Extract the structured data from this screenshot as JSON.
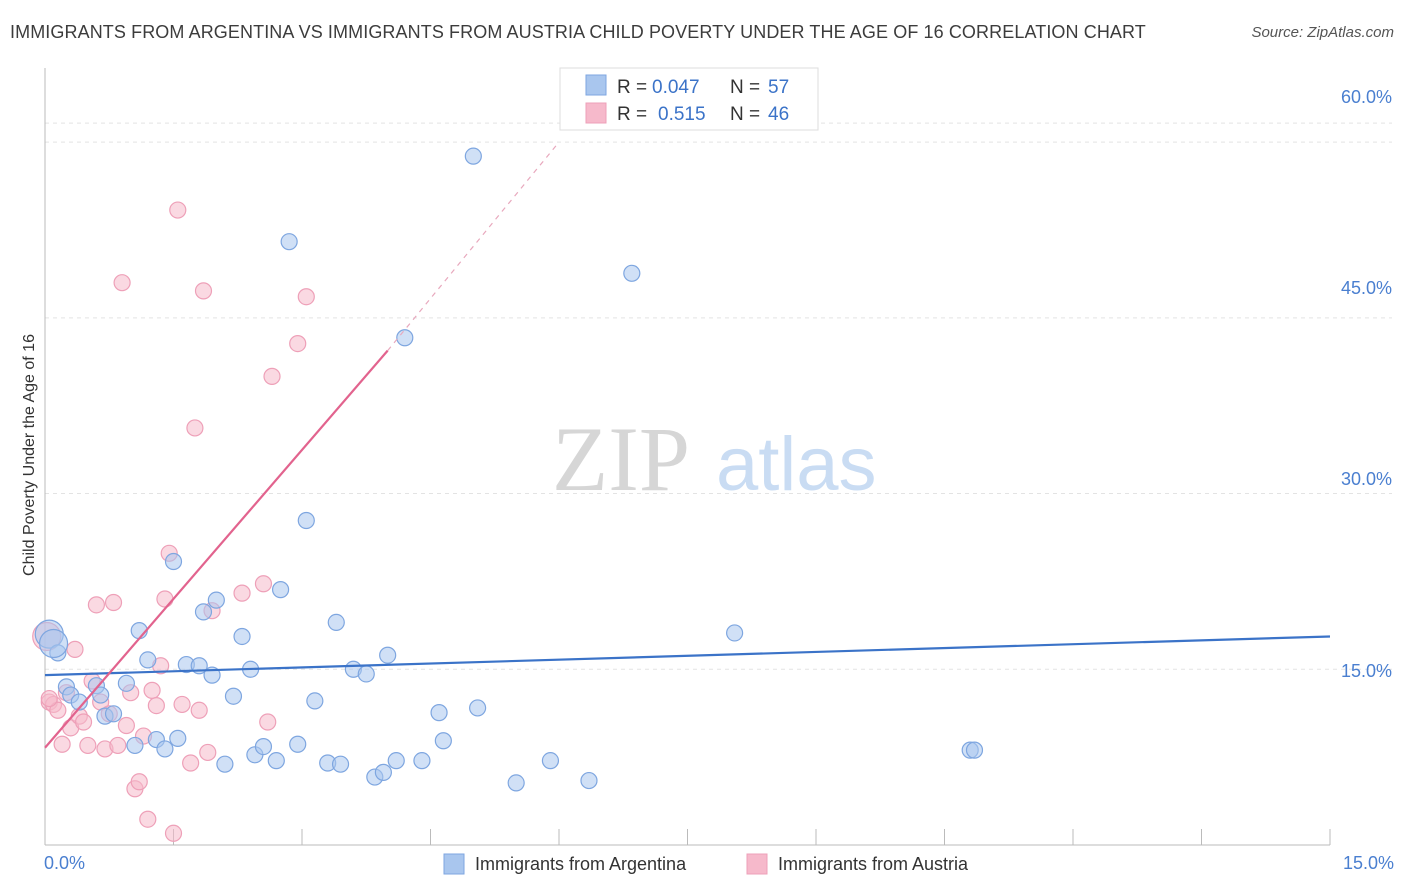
{
  "title": "IMMIGRANTS FROM ARGENTINA VS IMMIGRANTS FROM AUSTRIA CHILD POVERTY UNDER THE AGE OF 16 CORRELATION CHART",
  "source": "Source: ZipAtlas.com",
  "watermark": {
    "zip": "ZIP",
    "atlas": "atlas"
  },
  "colors": {
    "argentina": "#3b73c8",
    "austria": "#e2638e",
    "argentina_fill": "#a9c6ee",
    "austria_fill": "#f6b9cb"
  },
  "legend": {
    "r_label": "R =",
    "n_label": "N =",
    "argentina": {
      "r": "0.047",
      "n": "57"
    },
    "austria": {
      "r": "0.515",
      "n": "46"
    }
  },
  "chart_data": {
    "type": "scatter",
    "xlabel": "",
    "ylabel": "Child Poverty Under the Age of 16",
    "xlim": [
      0,
      15
    ],
    "ylim": [
      0,
      60
    ],
    "x_tick_labels": [
      "0.0%",
      "15.0%"
    ],
    "y_ticks": [
      15,
      30,
      45,
      60
    ],
    "y_tick_labels": [
      "15.0%",
      "30.0%",
      "45.0%",
      "60.0%"
    ],
    "grid": true,
    "legend_position": "top-center",
    "series": [
      {
        "name": "Immigrants from Argentina",
        "points": [
          [
            0.05,
            18
          ],
          [
            0.15,
            16.4
          ],
          [
            0.25,
            13.5
          ],
          [
            0.3,
            12.8
          ],
          [
            0.4,
            12.2
          ],
          [
            0.6,
            13.6
          ],
          [
            0.65,
            12.8
          ],
          [
            0.7,
            11
          ],
          [
            0.8,
            11.2
          ],
          [
            0.95,
            13.8
          ],
          [
            1.05,
            8.5
          ],
          [
            1.1,
            18.3
          ],
          [
            1.2,
            15.8
          ],
          [
            1.3,
            9
          ],
          [
            1.4,
            8.2
          ],
          [
            1.5,
            24.2
          ],
          [
            1.55,
            9.1
          ],
          [
            1.65,
            15.4
          ],
          [
            1.8,
            15.3
          ],
          [
            1.85,
            19.9
          ],
          [
            1.95,
            14.5
          ],
          [
            2.0,
            20.9
          ],
          [
            2.1,
            6.9
          ],
          [
            2.2,
            12.7
          ],
          [
            2.3,
            17.8
          ],
          [
            2.4,
            15
          ],
          [
            2.45,
            7.7
          ],
          [
            2.55,
            8.4
          ],
          [
            2.7,
            7.2
          ],
          [
            2.75,
            21.8
          ],
          [
            2.85,
            51.5
          ],
          [
            2.95,
            8.6
          ],
          [
            3.05,
            27.7
          ],
          [
            3.15,
            12.3
          ],
          [
            3.3,
            7
          ],
          [
            3.4,
            19
          ],
          [
            3.45,
            6.9
          ],
          [
            3.6,
            15
          ],
          [
            3.75,
            14.6
          ],
          [
            3.85,
            5.8
          ],
          [
            3.95,
            6.2
          ],
          [
            4.0,
            16.2
          ],
          [
            4.1,
            7.2
          ],
          [
            4.2,
            43.3
          ],
          [
            4.4,
            7.2
          ],
          [
            4.6,
            11.3
          ],
          [
            4.65,
            8.9
          ],
          [
            5.0,
            58.8
          ],
          [
            5.05,
            11.7
          ],
          [
            5.5,
            5.3
          ],
          [
            5.9,
            7.2
          ],
          [
            6.35,
            5.5
          ],
          [
            6.85,
            48.8
          ],
          [
            8.05,
            18.1
          ],
          [
            10.8,
            8.1
          ],
          [
            10.85,
            8.1
          ],
          [
            0.1,
            17.2
          ]
        ]
      },
      {
        "name": "Immigrants from Austria",
        "points": [
          [
            0.02,
            17.8
          ],
          [
            0.05,
            12.2
          ],
          [
            0.1,
            12
          ],
          [
            0.15,
            11.5
          ],
          [
            0.2,
            8.6
          ],
          [
            0.25,
            13
          ],
          [
            0.3,
            10
          ],
          [
            0.35,
            16.7
          ],
          [
            0.4,
            11
          ],
          [
            0.45,
            10.5
          ],
          [
            0.5,
            8.5
          ],
          [
            0.55,
            14
          ],
          [
            0.6,
            20.5
          ],
          [
            0.65,
            12.2
          ],
          [
            0.7,
            8.2
          ],
          [
            0.75,
            11.2
          ],
          [
            0.8,
            20.7
          ],
          [
            0.85,
            8.5
          ],
          [
            0.9,
            48
          ],
          [
            0.95,
            10.2
          ],
          [
            1.0,
            13
          ],
          [
            1.05,
            4.8
          ],
          [
            1.1,
            5.4
          ],
          [
            1.15,
            9.3
          ],
          [
            1.2,
            2.2
          ],
          [
            1.25,
            13.2
          ],
          [
            1.3,
            11.9
          ],
          [
            1.35,
            15.3
          ],
          [
            1.4,
            21
          ],
          [
            1.45,
            24.9
          ],
          [
            1.5,
            1
          ],
          [
            1.55,
            54.2
          ],
          [
            1.6,
            12
          ],
          [
            1.7,
            7
          ],
          [
            1.75,
            35.6
          ],
          [
            1.8,
            11.5
          ],
          [
            1.85,
            47.3
          ],
          [
            1.95,
            20
          ],
          [
            2.3,
            21.5
          ],
          [
            2.55,
            22.3
          ],
          [
            2.6,
            10.5
          ],
          [
            2.65,
            40
          ],
          [
            2.95,
            42.8
          ],
          [
            3.05,
            46.8
          ],
          [
            0.05,
            12.5
          ],
          [
            1.9,
            7.9
          ]
        ]
      }
    ],
    "trendlines": [
      {
        "series": "Immigrants from Argentina",
        "from": [
          0,
          14.5
        ],
        "to": [
          15,
          17.8
        ]
      },
      {
        "series": "Immigrants from Austria",
        "from": [
          0,
          8.3
        ],
        "to": [
          4,
          42.2
        ],
        "dashed_to": [
          6,
          60
        ]
      }
    ]
  },
  "bottom_legend": [
    "Immigrants from Argentina",
    "Immigrants from Austria"
  ]
}
